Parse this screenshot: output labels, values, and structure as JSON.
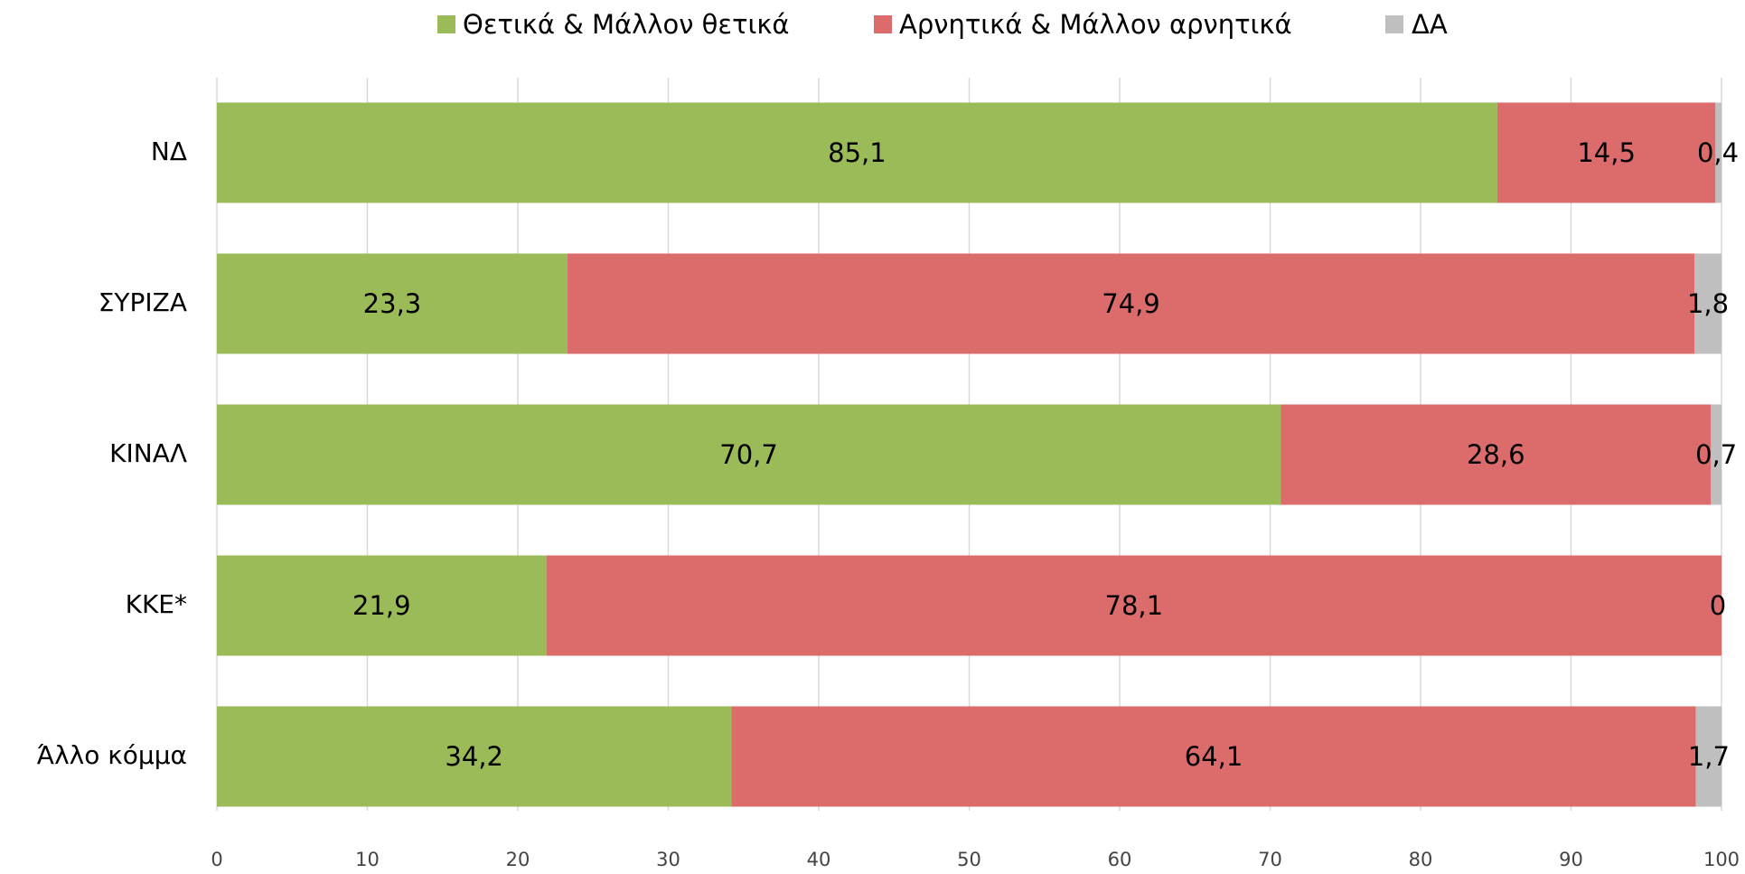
{
  "chart_data": {
    "type": "stacked_barh",
    "categories": [
      "ΝΔ",
      "ΣΥΡΙΖΑ",
      "ΚΙΝΑΛ",
      "ΚΚΕ*",
      "Άλλο κόμμα"
    ],
    "series": [
      {
        "name": "Θετικά & Μάλλον θετικά",
        "color": "#9bbb59",
        "values": [
          85.1,
          23.3,
          70.7,
          21.9,
          34.2
        ],
        "value_labels": [
          "85,1",
          "23,3",
          "70,7",
          "21,9",
          "34,2"
        ]
      },
      {
        "name": "Αρνητικά & Μάλλον αρνητικά",
        "color": "#dc6b6b",
        "values": [
          14.5,
          74.9,
          28.6,
          78.1,
          64.1
        ],
        "value_labels": [
          "14,5",
          "74,9",
          "28,6",
          "78,1",
          "64,1"
        ]
      },
      {
        "name": "ΔΑ",
        "color": "#bfbfbf",
        "values": [
          0.4,
          1.8,
          0.7,
          0,
          1.7
        ],
        "value_labels": [
          "0,4",
          "1,8",
          "0,7",
          "0",
          "1,7"
        ]
      }
    ],
    "xlim": [
      0,
      100
    ],
    "xticks": [
      0,
      10,
      20,
      30,
      40,
      50,
      60,
      70,
      80,
      90,
      100
    ],
    "grid": true,
    "legend": "top"
  }
}
